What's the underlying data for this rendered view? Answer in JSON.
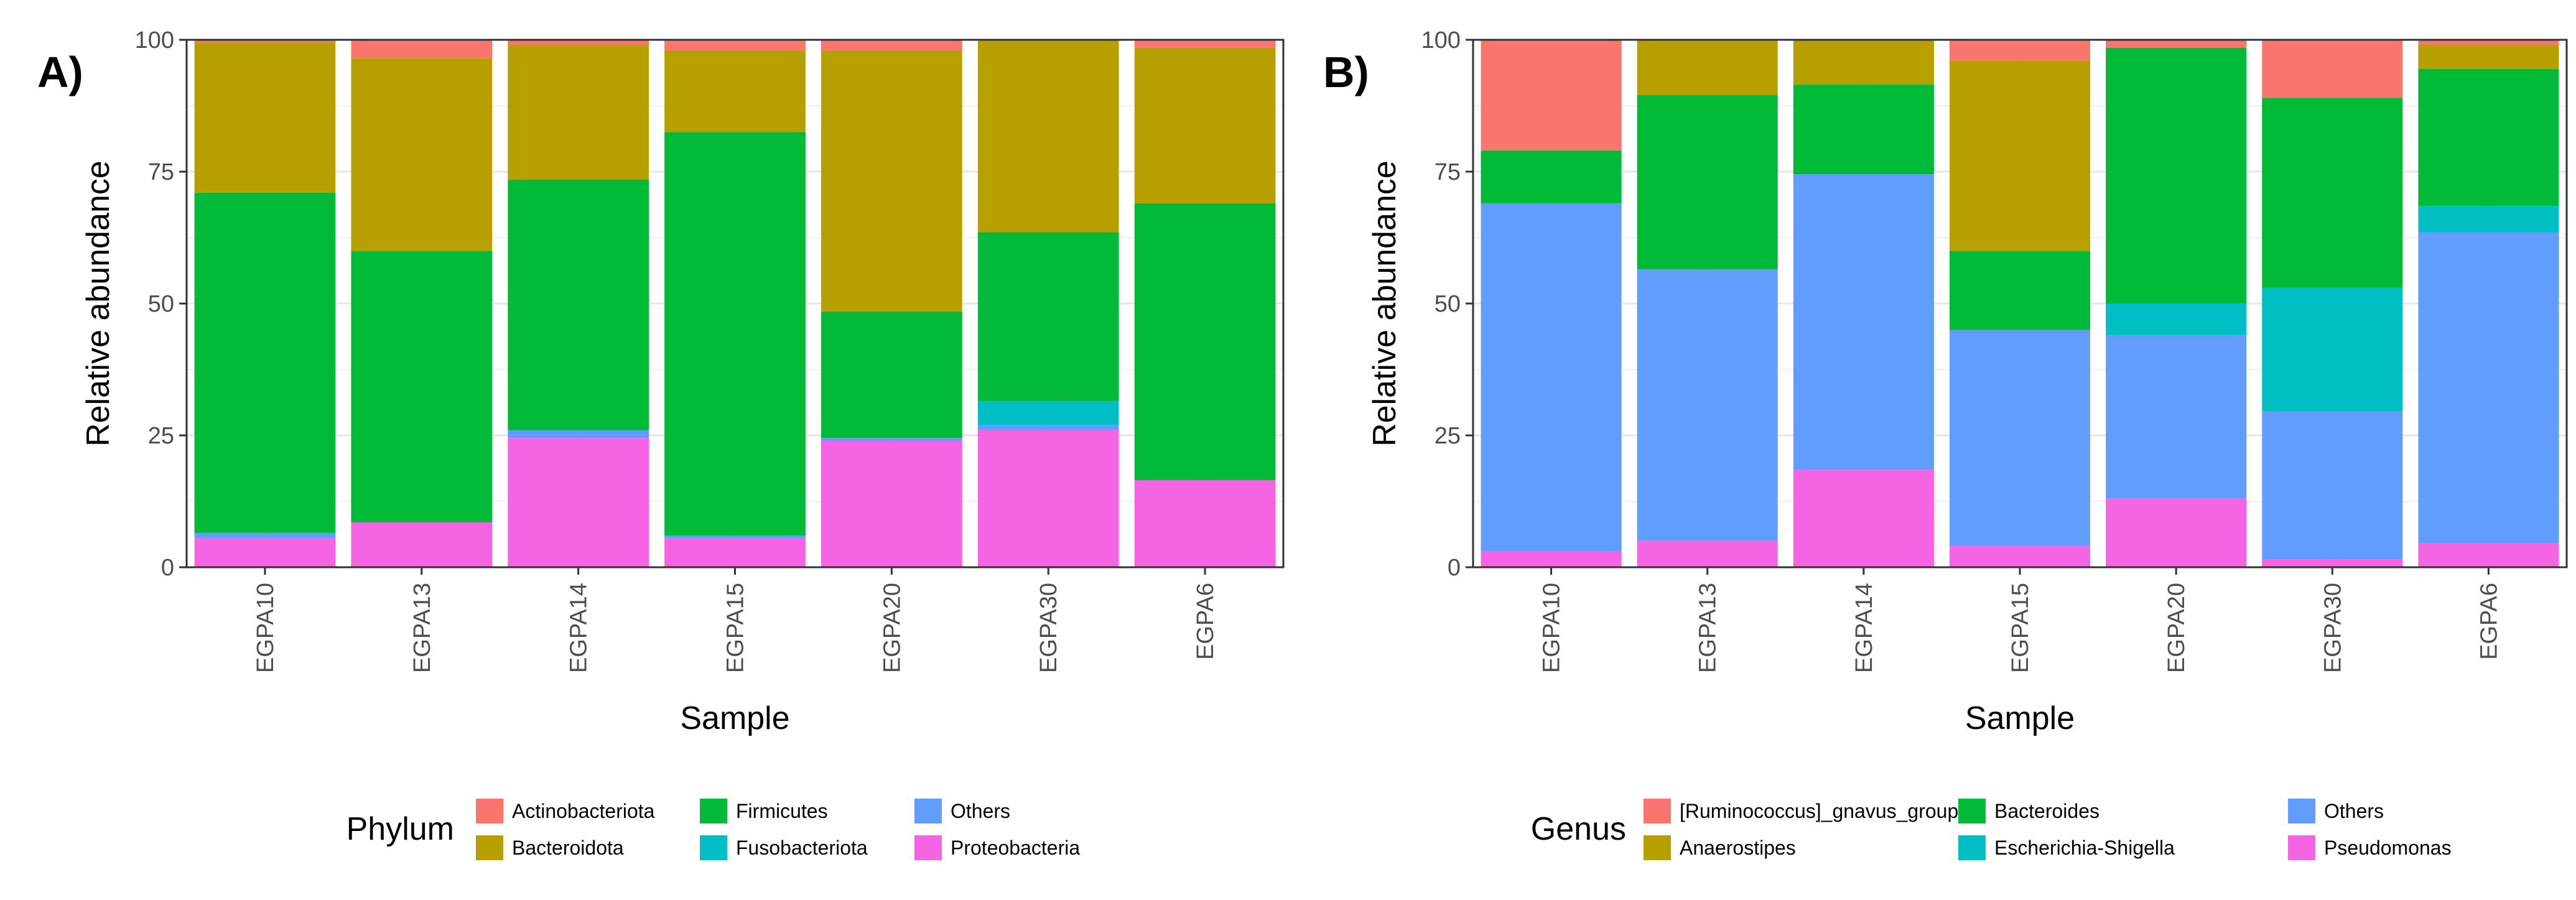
{
  "chart_data": [
    {
      "type": "bar",
      "stacked": true,
      "panel_label": "A)",
      "xlabel": "Sample",
      "ylabel": "Relative abundance",
      "ylim": [
        0,
        100
      ],
      "yticks": [
        0,
        25,
        50,
        75,
        100
      ],
      "grid": true,
      "legend_title": "Phylum",
      "legend_position": "bottom",
      "categories": [
        "EGPA10",
        "EGPA13",
        "EGPA14",
        "EGPA15",
        "EGPA20",
        "EGPA30",
        "EGPA6"
      ],
      "series": [
        {
          "name": "Proteobacteria",
          "color": "#F564E3",
          "values": [
            5.5,
            8.5,
            24.5,
            5.5,
            24,
            26,
            16.5
          ]
        },
        {
          "name": "Others",
          "color": "#619CFF",
          "values": [
            1,
            0,
            1.5,
            0.5,
            0.5,
            1,
            0
          ]
        },
        {
          "name": "Fusobacteriota",
          "color": "#00BFC4",
          "values": [
            0,
            0,
            0,
            0,
            0,
            4.5,
            0
          ]
        },
        {
          "name": "Firmicutes",
          "color": "#00BA38",
          "values": [
            64.5,
            51.5,
            47.5,
            76.5,
            24,
            32,
            52.5
          ]
        },
        {
          "name": "Bacteroidota",
          "color": "#B79F00",
          "values": [
            28.5,
            36.5,
            25.5,
            15.5,
            49.5,
            36.5,
            29.5
          ]
        },
        {
          "name": "Actinobacteriota",
          "color": "#F8766D",
          "values": [
            0.5,
            3.5,
            1,
            2,
            2,
            0,
            1.5
          ]
        }
      ],
      "legend_order": [
        "Actinobacteriota",
        "Bacteroidota",
        "Firmicutes",
        "Fusobacteriota",
        "Others",
        "Proteobacteria"
      ]
    },
    {
      "type": "bar",
      "stacked": true,
      "panel_label": "B)",
      "xlabel": "Sample",
      "ylabel": "Relative abundance",
      "ylim": [
        0,
        100
      ],
      "yticks": [
        0,
        25,
        50,
        75,
        100
      ],
      "grid": true,
      "legend_title": "Genus",
      "legend_position": "bottom",
      "categories": [
        "EGPA10",
        "EGPA13",
        "EGPA14",
        "EGPA15",
        "EGPA20",
        "EGPA30",
        "EGPA6"
      ],
      "series": [
        {
          "name": "Pseudomonas",
          "color": "#F564E3",
          "values": [
            3,
            5,
            18.5,
            4,
            13,
            1.5,
            4.5
          ]
        },
        {
          "name": "Others",
          "color": "#619CFF",
          "values": [
            66,
            51.5,
            56,
            41,
            31,
            28,
            59
          ]
        },
        {
          "name": "Escherichia-Shigella",
          "color": "#00BFC4",
          "values": [
            0,
            0,
            0,
            0,
            6,
            23.5,
            5
          ]
        },
        {
          "name": "Bacteroides",
          "color": "#00BA38",
          "values": [
            10,
            33,
            17,
            15,
            48.5,
            36,
            26
          ]
        },
        {
          "name": "Anaerostipes",
          "color": "#B79F00",
          "values": [
            0,
            10.5,
            8.5,
            36,
            0,
            0,
            4.5
          ]
        },
        {
          "name": "[Ruminococcus]_gnavus_group",
          "color": "#F8766D",
          "values": [
            21,
            0,
            0,
            4,
            1.5,
            11,
            1
          ]
        }
      ],
      "legend_order": [
        "[Ruminococcus]_gnavus_group",
        "Anaerostipes",
        "Bacteroides",
        "Escherichia-Shigella",
        "Others",
        "Pseudomonas"
      ]
    }
  ]
}
